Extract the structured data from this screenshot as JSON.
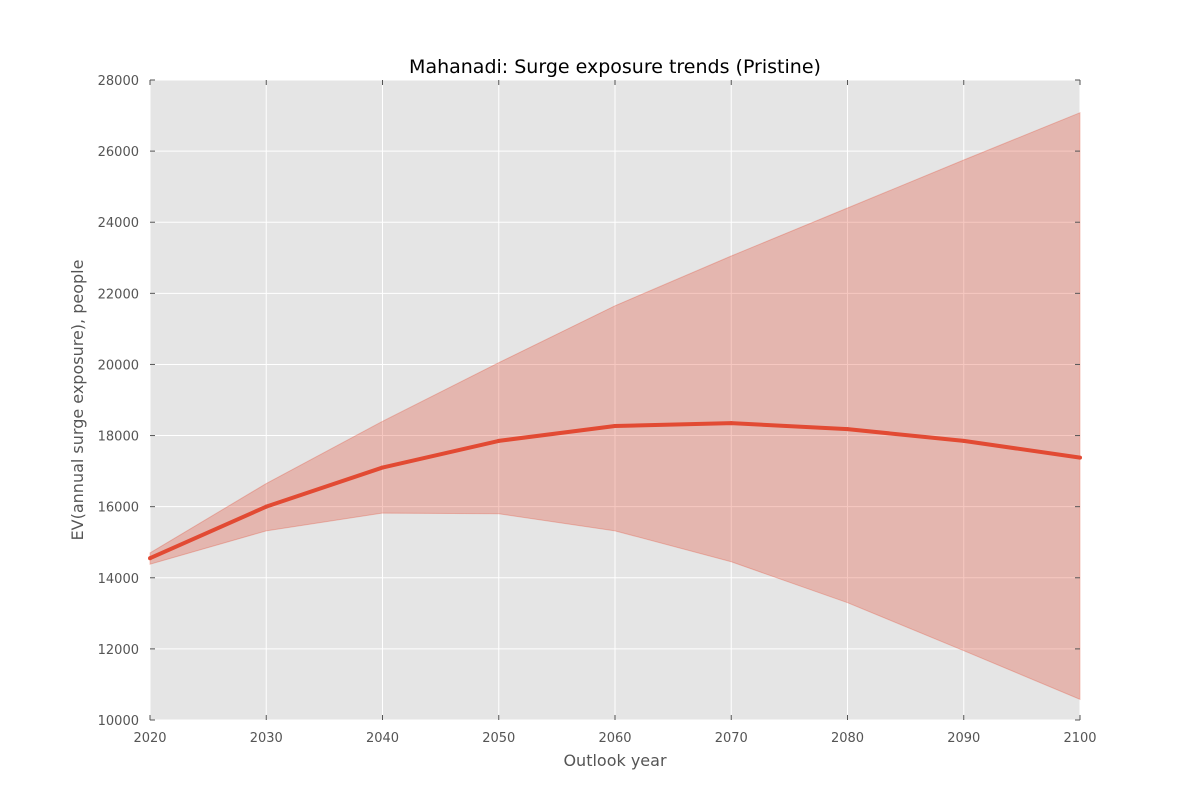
{
  "chart_data": {
    "type": "area",
    "title": "Mahanadi: Surge exposure trends (Pristine)",
    "xlabel": "Outlook year",
    "ylabel": "EV(annual surge exposure), people",
    "xlim": [
      2020,
      2100
    ],
    "ylim": [
      10000,
      28000
    ],
    "xticks": [
      2020,
      2030,
      2040,
      2050,
      2060,
      2070,
      2080,
      2090,
      2100
    ],
    "yticks": [
      10000,
      12000,
      14000,
      16000,
      18000,
      20000,
      22000,
      24000,
      26000,
      28000
    ],
    "grid": true,
    "x": [
      2020,
      2030,
      2040,
      2050,
      2060,
      2070,
      2080,
      2090,
      2100
    ],
    "series": [
      {
        "values": [
          14550,
          16000,
          17100,
          17850,
          18270,
          18350,
          18180,
          17850,
          17380
        ],
        "lower": [
          14380,
          15320,
          15820,
          15800,
          15320,
          14450,
          13300,
          11950,
          10580
        ],
        "upper": [
          14700,
          16650,
          18400,
          20050,
          21650,
          23050,
          24400,
          25750,
          27080
        ]
      }
    ],
    "colors": {
      "line": "#e24a33",
      "band": "#e24a33",
      "background": "#e5e5e5",
      "grid": "#ffffff"
    }
  }
}
